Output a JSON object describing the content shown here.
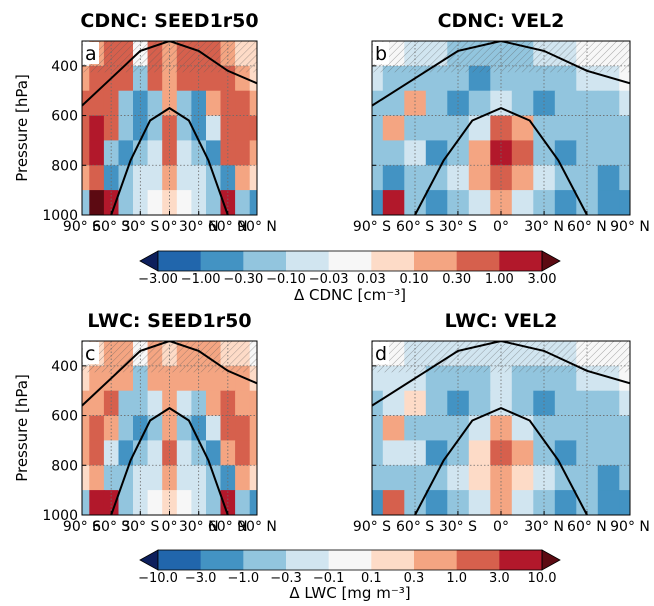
{
  "figure": {
    "rows": [
      {
        "panels": [
          {
            "letter": "a",
            "title": "CDNC: SEED1r50",
            "field": "cdnc_seed",
            "show_ylabel": true
          },
          {
            "letter": "b",
            "title": "CDNC: VEL2",
            "field": "cdnc_vel",
            "show_ylabel": false
          }
        ],
        "colorbar": {
          "ticks": [
            "−3.00",
            "−1.00",
            "−0.30",
            "−0.10",
            "−0.03",
            "0.03",
            "0.10",
            "0.30",
            "1.00",
            "3.00"
          ],
          "label": "Δ CDNC [cm⁻³]"
        }
      },
      {
        "panels": [
          {
            "letter": "c",
            "title": "LWC: SEED1r50",
            "field": "lwc_seed",
            "show_ylabel": true
          },
          {
            "letter": "d",
            "title": "LWC: VEL2",
            "field": "lwc_vel",
            "show_ylabel": false
          }
        ],
        "colorbar": {
          "ticks": [
            "−10.0",
            "−3.0",
            "−1.0",
            "−0.3",
            "−0.1",
            "0.1",
            "0.3",
            "1.0",
            "3.0",
            "10.0"
          ],
          "label": "Δ LWC [mg m⁻³]"
        }
      }
    ],
    "ylabel": "Pressure [hPa]",
    "xticks": [
      "90° S",
      "60° S",
      "30° S",
      "0°",
      "30° N",
      "60° N",
      "90° N"
    ],
    "yticks": [
      "400",
      "600",
      "800",
      "1000"
    ],
    "colors": {
      "levels": [
        "#0d1f5c",
        "#2166ac",
        "#4393c3",
        "#92c5de",
        "#d1e5f0",
        "#f7f7f7",
        "#fddbc7",
        "#f4a582",
        "#d6604d",
        "#b2182b",
        "#5c0a12"
      ],
      "grid": "#6b6b6b",
      "hatch": "#555555",
      "tropopause": "#000000"
    }
  },
  "chart_data": [
    {
      "type": "heatmap",
      "title": "CDNC: SEED1r50",
      "panel_label": "a",
      "xlabel": "",
      "ylabel": "Pressure [hPa]",
      "x_range": [
        -90,
        90
      ],
      "y_range": [
        1000,
        300
      ],
      "x_ticks": [
        -90,
        -60,
        -30,
        0,
        30,
        60,
        90
      ],
      "y_ticks": [
        400,
        600,
        800,
        1000
      ],
      "grid": true,
      "levels": [
        -3.0,
        -1.0,
        -0.3,
        -0.1,
        -0.03,
        0.03,
        0.1,
        0.3,
        1.0,
        3.0
      ],
      "colorbar_label": "Δ CDNC [cm⁻³]",
      "lat": [
        -90,
        -75,
        -60,
        -45,
        -30,
        -15,
        0,
        15,
        30,
        45,
        60,
        75,
        90
      ],
      "pressure": [
        350,
        450,
        550,
        650,
        750,
        850,
        950
      ],
      "values": [
        [
          -0.03,
          0.1,
          0.3,
          0.3,
          -0.03,
          0.3,
          0.1,
          0.3,
          0.3,
          0.3,
          0.1,
          0.03,
          0.03
        ],
        [
          0.1,
          0.3,
          0.3,
          0.3,
          -0.3,
          0.3,
          0.1,
          0.3,
          0.3,
          0.3,
          0.3,
          0.1,
          0.03
        ],
        [
          0.3,
          0.3,
          0.3,
          -0.3,
          -1.0,
          -0.3,
          0.1,
          -0.3,
          -1.0,
          0.1,
          0.3,
          0.3,
          0.1
        ],
        [
          0.3,
          1.0,
          0.3,
          -0.3,
          -1.0,
          -0.3,
          0.3,
          -0.3,
          -1.0,
          -0.1,
          0.3,
          0.3,
          0.3
        ],
        [
          0.3,
          1.0,
          -0.3,
          -1.0,
          -0.3,
          -0.1,
          0.3,
          -0.1,
          -0.3,
          -1.0,
          0.3,
          0.3,
          0.1
        ],
        [
          0.1,
          0.3,
          -1.0,
          -0.3,
          -0.1,
          -0.1,
          0.1,
          -0.1,
          -0.1,
          -0.3,
          -1.0,
          0.1,
          0.03
        ],
        [
          -0.3,
          3.0,
          1.0,
          -0.3,
          -0.1,
          -0.03,
          0.03,
          -0.03,
          -0.1,
          -0.3,
          1.0,
          -0.3,
          -1.0
        ]
      ]
    },
    {
      "type": "heatmap",
      "title": "CDNC: VEL2",
      "panel_label": "b",
      "xlabel": "",
      "ylabel": "",
      "x_range": [
        -90,
        90
      ],
      "y_range": [
        1000,
        300
      ],
      "x_ticks": [
        -90,
        -60,
        -30,
        0,
        30,
        60,
        90
      ],
      "y_ticks": [
        400,
        600,
        800,
        1000
      ],
      "grid": true,
      "levels": [
        -3.0,
        -1.0,
        -0.3,
        -0.1,
        -0.03,
        0.03,
        0.1,
        0.3,
        1.0,
        3.0
      ],
      "colorbar_label": "Δ CDNC [cm⁻³]",
      "lat": [
        -90,
        -75,
        -60,
        -45,
        -30,
        -15,
        0,
        15,
        30,
        45,
        60,
        75,
        90
      ],
      "pressure": [
        350,
        450,
        550,
        650,
        750,
        850,
        950
      ],
      "values": [
        [
          -0.03,
          -0.03,
          -0.1,
          -0.1,
          -0.3,
          -0.3,
          -0.3,
          -0.3,
          -0.1,
          -0.1,
          -0.03,
          -0.03,
          -0.03
        ],
        [
          -0.1,
          -0.3,
          -0.3,
          -0.3,
          -0.3,
          -1.0,
          -0.3,
          -0.3,
          -0.3,
          -0.3,
          -0.1,
          -0.1,
          -0.03
        ],
        [
          -0.3,
          -0.3,
          0.1,
          -0.3,
          -1.0,
          -0.3,
          -0.1,
          -0.3,
          -1.0,
          -0.3,
          -0.3,
          -0.3,
          -0.1
        ],
        [
          -0.3,
          0.1,
          -0.3,
          -0.3,
          -0.3,
          -0.1,
          0.3,
          0.1,
          -0.3,
          -0.3,
          -0.3,
          -0.3,
          -0.3
        ],
        [
          -0.3,
          -0.3,
          -0.1,
          -1.0,
          -0.3,
          0.1,
          1.0,
          0.3,
          -0.3,
          -1.0,
          -0.3,
          -0.3,
          -0.3
        ],
        [
          -0.3,
          -1.0,
          -0.3,
          -0.3,
          -0.1,
          0.1,
          0.3,
          0.1,
          -0.1,
          -0.3,
          -0.3,
          -1.0,
          -0.3
        ],
        [
          -1.0,
          1.0,
          -0.3,
          -1.0,
          -0.3,
          -0.1,
          0.1,
          -0.1,
          -0.3,
          -1.0,
          -0.3,
          -1.0,
          -1.0
        ]
      ]
    },
    {
      "type": "heatmap",
      "title": "LWC: SEED1r50",
      "panel_label": "c",
      "xlabel": "",
      "ylabel": "Pressure [hPa]",
      "x_range": [
        -90,
        90
      ],
      "y_range": [
        1000,
        300
      ],
      "x_ticks": [
        -90,
        -60,
        -30,
        0,
        30,
        60,
        90
      ],
      "y_ticks": [
        400,
        600,
        800,
        1000
      ],
      "grid": true,
      "levels": [
        -10.0,
        -3.0,
        -1.0,
        -0.3,
        -0.1,
        0.1,
        0.3,
        1.0,
        3.0,
        10.0
      ],
      "colorbar_label": "Δ LWC [mg m⁻³]",
      "lat": [
        -90,
        -75,
        -60,
        -45,
        -30,
        -15,
        0,
        15,
        30,
        45,
        60,
        75,
        90
      ],
      "pressure": [
        350,
        450,
        550,
        650,
        750,
        850,
        950
      ],
      "values": [
        [
          -0.1,
          0.1,
          0.3,
          0.3,
          -0.1,
          0.3,
          0.1,
          0.3,
          0.3,
          0.3,
          0.1,
          0.1,
          -0.1
        ],
        [
          0.1,
          0.3,
          0.3,
          0.3,
          -1.0,
          0.3,
          0.3,
          0.3,
          0.3,
          0.3,
          0.3,
          0.3,
          0.1
        ],
        [
          0.3,
          0.3,
          1.0,
          -1.0,
          -1.0,
          -0.3,
          0.3,
          -0.3,
          -1.0,
          0.3,
          1.0,
          0.3,
          0.3
        ],
        [
          0.3,
          1.0,
          0.3,
          -1.0,
          -3.0,
          -1.0,
          0.3,
          -1.0,
          -3.0,
          -0.3,
          1.0,
          1.0,
          0.3
        ],
        [
          0.3,
          1.0,
          -0.3,
          -3.0,
          -1.0,
          -0.3,
          1.0,
          -0.3,
          -1.0,
          -3.0,
          0.3,
          1.0,
          0.3
        ],
        [
          0.1,
          0.3,
          -1.0,
          -1.0,
          -0.3,
          -0.3,
          0.3,
          -0.3,
          -0.3,
          -1.0,
          -3.0,
          0.3,
          0.1
        ],
        [
          -1.0,
          3.0,
          3.0,
          -1.0,
          -0.3,
          -0.1,
          0.1,
          -0.1,
          -0.3,
          -1.0,
          3.0,
          -1.0,
          -3.0
        ]
      ]
    },
    {
      "type": "heatmap",
      "title": "LWC: VEL2",
      "panel_label": "d",
      "xlabel": "",
      "ylabel": "",
      "x_range": [
        -90,
        90
      ],
      "y_range": [
        1000,
        300
      ],
      "x_ticks": [
        -90,
        -60,
        -30,
        0,
        30,
        60,
        90
      ],
      "y_ticks": [
        400,
        600,
        800,
        1000
      ],
      "grid": true,
      "levels": [
        -10.0,
        -3.0,
        -1.0,
        -0.3,
        -0.1,
        0.1,
        0.3,
        1.0,
        3.0,
        10.0
      ],
      "colorbar_label": "Δ LWC [mg m⁻³]",
      "lat": [
        -90,
        -75,
        -60,
        -45,
        -30,
        -15,
        0,
        15,
        30,
        45,
        60,
        75,
        90
      ],
      "pressure": [
        350,
        450,
        550,
        650,
        750,
        850,
        950
      ],
      "values": [
        [
          -0.1,
          -0.1,
          -0.3,
          -0.3,
          -0.3,
          -0.3,
          -0.3,
          -0.3,
          -0.3,
          -0.3,
          -0.1,
          -0.1,
          -0.1
        ],
        [
          -0.3,
          -0.3,
          -0.3,
          -1.0,
          -1.0,
          -1.0,
          -0.3,
          -1.0,
          -1.0,
          -1.0,
          -0.3,
          -0.3,
          -0.1
        ],
        [
          -1.0,
          -0.3,
          0.1,
          -1.0,
          -3.0,
          -1.0,
          -0.3,
          -1.0,
          -3.0,
          -1.0,
          -1.0,
          -1.0,
          -0.3
        ],
        [
          -1.0,
          0.3,
          -1.0,
          -1.0,
          -1.0,
          -0.3,
          0.3,
          -0.3,
          -1.0,
          -1.0,
          -1.0,
          -1.0,
          -1.0
        ],
        [
          -1.0,
          -0.3,
          -0.3,
          -3.0,
          -1.0,
          0.1,
          1.0,
          0.3,
          -1.0,
          -3.0,
          -1.0,
          -1.0,
          -1.0
        ],
        [
          -1.0,
          -1.0,
          -1.0,
          -1.0,
          -0.3,
          0.1,
          0.3,
          0.1,
          -0.3,
          -1.0,
          -1.0,
          -3.0,
          -1.0
        ],
        [
          -3.0,
          1.0,
          -1.0,
          -3.0,
          -1.0,
          -0.3,
          0.3,
          -0.3,
          -1.0,
          -3.0,
          -1.0,
          -3.0,
          -3.0
        ]
      ]
    }
  ]
}
